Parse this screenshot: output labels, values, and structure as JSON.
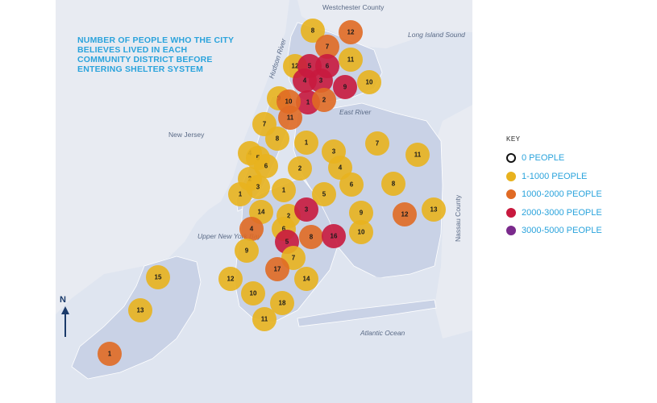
{
  "title": "NUMBER OF PEOPLE WHO THE CITY BELIEVES LIVED IN EACH COMMUNITY DISTRICT BEFORE ENTERING SHELTER SYSTEM",
  "map_labels": {
    "westchester": "Westchester County",
    "long_island_sound": "Long Island Sound",
    "hudson_river": "Hudson River",
    "east_river": "East River",
    "new_jersey": "New Jersey",
    "upper_new_york_bay": "Upper New York Bay",
    "atlantic_ocean": "Atlantic Ocean",
    "nassau_county": "Nassau County",
    "north": "N"
  },
  "legend": {
    "title": "KEY",
    "items": [
      {
        "label": "0 PEOPLE",
        "color": "#ffffff",
        "border": "#111111"
      },
      {
        "label": "1-1000 PEOPLE",
        "color": "#e8b21e",
        "border": "#e8b21e"
      },
      {
        "label": "1000-2000 PEOPLE",
        "color": "#e06a24",
        "border": "#e06a24"
      },
      {
        "label": "2000-3000 PEOPLE",
        "color": "#c8193e",
        "border": "#c8193e"
      },
      {
        "label": "3000-5000 PEOPLE",
        "color": "#7a2a8c",
        "border": "#7a2a8c"
      }
    ]
  },
  "category_colors": {
    "1": "#e8b21e",
    "2": "#e06a24",
    "3": "#c8193e",
    "4": "#7a2a8c"
  },
  "districts": [
    {
      "n": "8",
      "cat": 1
    },
    {
      "n": "12",
      "cat": 2
    },
    {
      "n": "7",
      "cat": 2
    },
    {
      "n": "11",
      "cat": 1
    },
    {
      "n": "12",
      "cat": 1
    },
    {
      "n": "5",
      "cat": 3
    },
    {
      "n": "6",
      "cat": 3
    },
    {
      "n": "4",
      "cat": 3
    },
    {
      "n": "3",
      "cat": 3
    },
    {
      "n": "9",
      "cat": 3
    },
    {
      "n": "10",
      "cat": 1
    },
    {
      "n": "1",
      "cat": 3
    },
    {
      "n": "2",
      "cat": 2
    },
    {
      "n": "9",
      "cat": 1
    },
    {
      "n": "10",
      "cat": 2
    },
    {
      "n": "11",
      "cat": 2
    },
    {
      "n": "7",
      "cat": 1
    },
    {
      "n": "8",
      "cat": 1
    },
    {
      "n": "4",
      "cat": 1
    },
    {
      "n": "5",
      "cat": 1
    },
    {
      "n": "6",
      "cat": 1
    },
    {
      "n": "2",
      "cat": 1
    },
    {
      "n": "3",
      "cat": 1
    },
    {
      "n": "1",
      "cat": 1
    },
    {
      "n": "1",
      "cat": 1
    },
    {
      "n": "3",
      "cat": 1
    },
    {
      "n": "7",
      "cat": 1
    },
    {
      "n": "11",
      "cat": 1
    },
    {
      "n": "2",
      "cat": 1
    },
    {
      "n": "4",
      "cat": 1
    },
    {
      "n": "6",
      "cat": 1
    },
    {
      "n": "8",
      "cat": 1
    },
    {
      "n": "1",
      "cat": 1
    },
    {
      "n": "5",
      "cat": 1
    },
    {
      "n": "12",
      "cat": 2
    },
    {
      "n": "13",
      "cat": 1
    },
    {
      "n": "9",
      "cat": 1
    },
    {
      "n": "10",
      "cat": 1
    },
    {
      "n": "14",
      "cat": 1
    },
    {
      "n": "2",
      "cat": 1
    },
    {
      "n": "3",
      "cat": 3
    },
    {
      "n": "4",
      "cat": 2
    },
    {
      "n": "6",
      "cat": 1
    },
    {
      "n": "8",
      "cat": 2
    },
    {
      "n": "16",
      "cat": 3
    },
    {
      "n": "5",
      "cat": 3
    },
    {
      "n": "9",
      "cat": 1
    },
    {
      "n": "7",
      "cat": 1
    },
    {
      "n": "17",
      "cat": 2
    },
    {
      "n": "12",
      "cat": 1
    },
    {
      "n": "14",
      "cat": 1
    },
    {
      "n": "10",
      "cat": 1
    },
    {
      "n": "18",
      "cat": 1
    },
    {
      "n": "11",
      "cat": 1
    },
    {
      "n": "15",
      "cat": 1
    },
    {
      "n": "13",
      "cat": 1
    },
    {
      "n": "1",
      "cat": 2
    },
    {
      "n": "2",
      "cat": 1
    },
    {
      "n": "3",
      "cat": 1
    }
  ]
}
